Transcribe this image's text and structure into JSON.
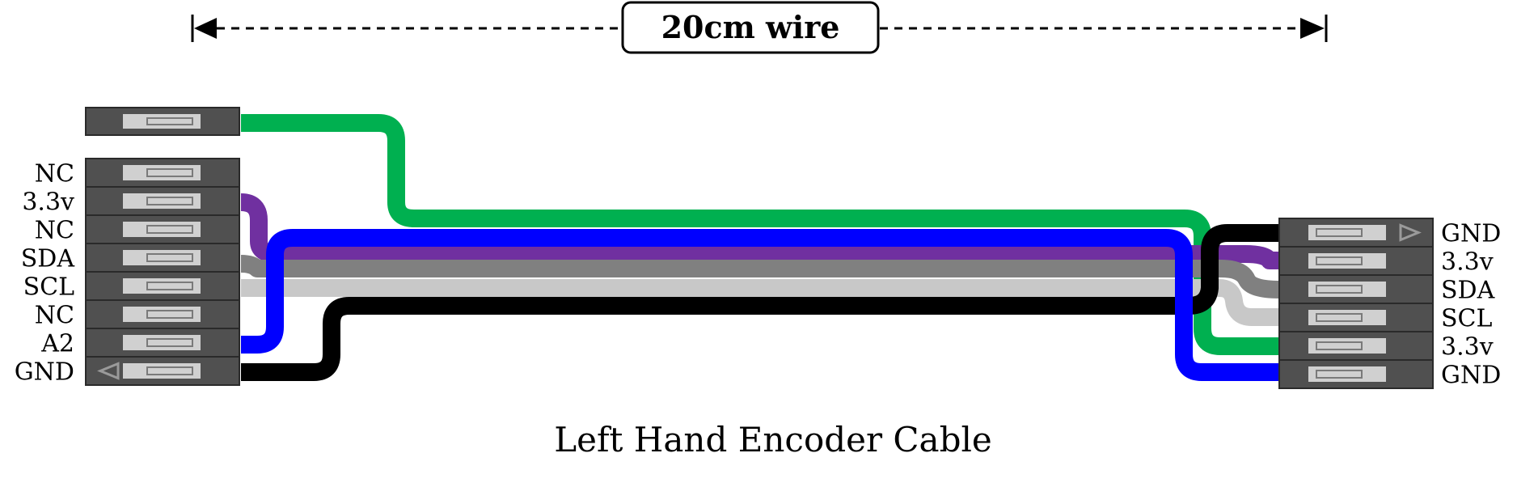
{
  "measure": {
    "label": "20cm wire"
  },
  "caption": "Left Hand Encoder Cable",
  "left_connector": {
    "pins": [
      "NC",
      "3.3v",
      "NC",
      "SDA",
      "SCL",
      "NC",
      "A2",
      "GND"
    ]
  },
  "right_connector": {
    "pins": [
      "GND",
      "3.3v",
      "SDA",
      "SCL",
      "3.3v",
      "GND"
    ]
  },
  "colors": {
    "green": "#00b050",
    "blue": "#0000ff",
    "purple": "#7030a0",
    "gray": "#808080",
    "light_gray": "#c8c8c8",
    "black": "#000000",
    "housing": "#505050",
    "contact": "#d0d0d0"
  },
  "wires": [
    {
      "color": "green",
      "from": "left-single",
      "to": "right-pin-5"
    },
    {
      "color": "purple",
      "from": "left-pin-2",
      "to": "right-pin-2"
    },
    {
      "color": "gray",
      "from": "left-pin-4",
      "to": "right-pin-3"
    },
    {
      "color": "light_gray",
      "from": "left-pin-5",
      "to": "right-pin-4"
    },
    {
      "color": "black",
      "from": "left-pin-8",
      "to": "right-pin-1"
    },
    {
      "color": "blue",
      "from": "left-pin-7",
      "to": "right-pin-6"
    }
  ]
}
